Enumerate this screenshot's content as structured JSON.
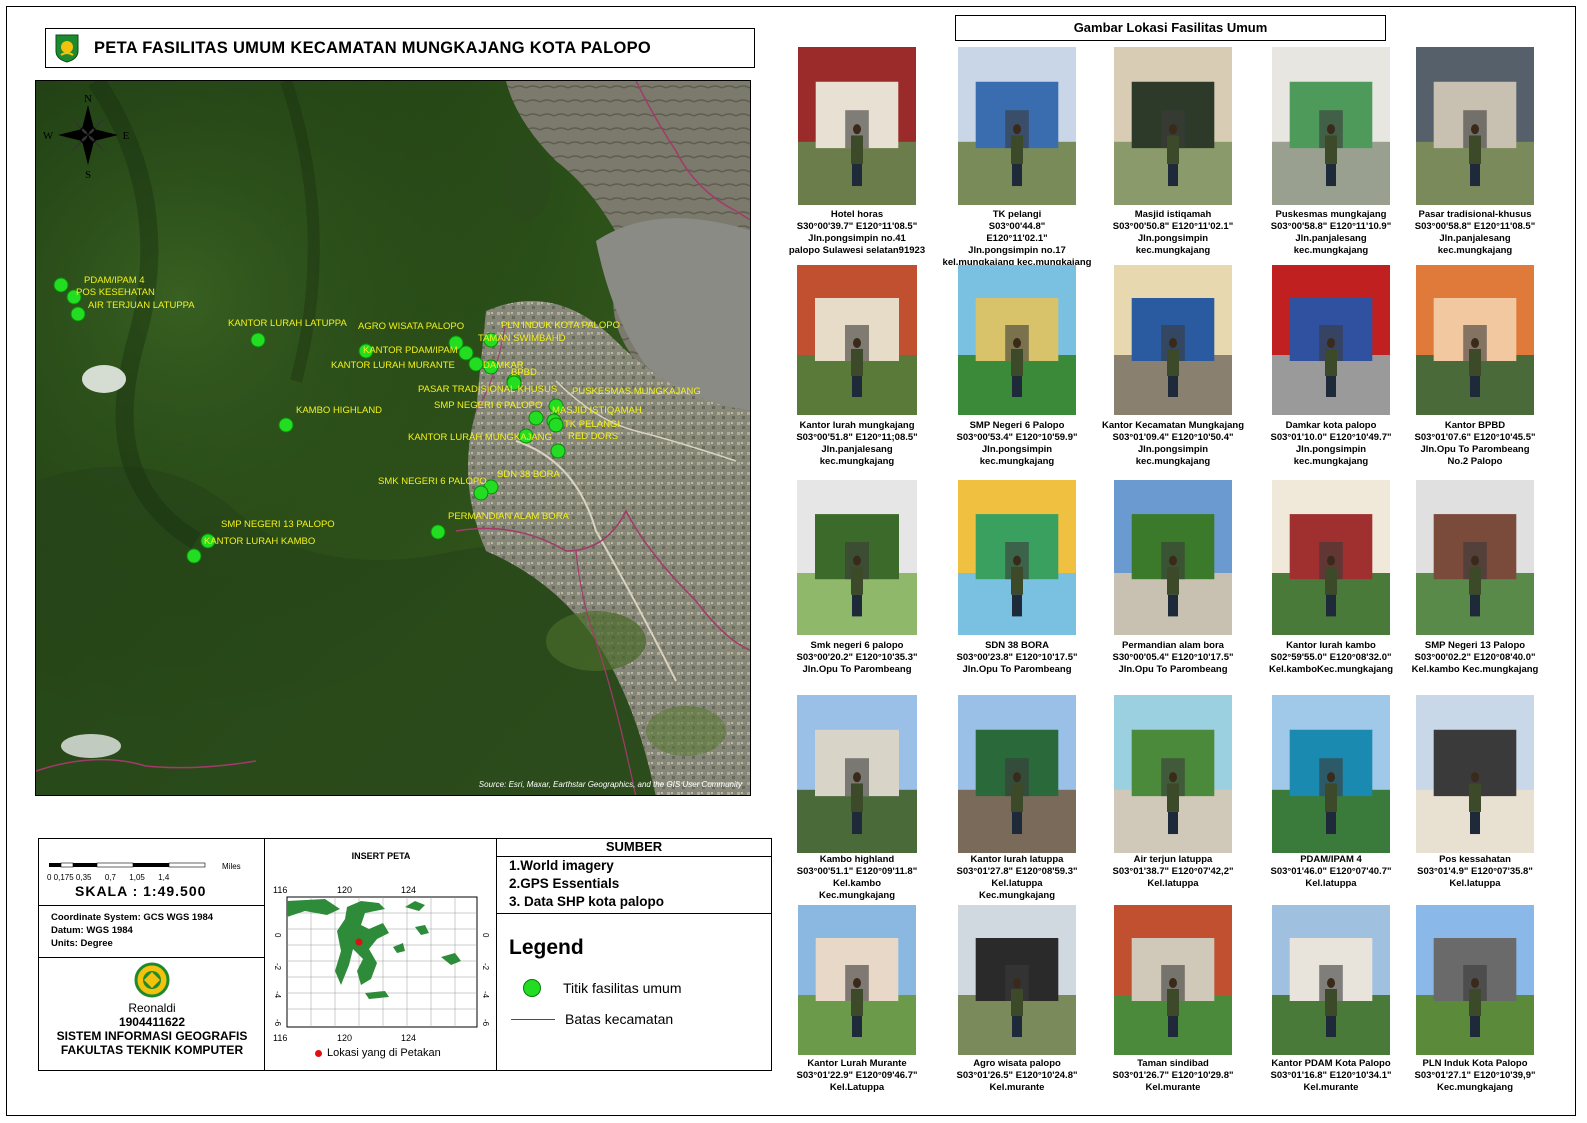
{
  "title": "PETA FASILITAS UMUM KECAMATAN MUNGKAJANG KOTA PALOPO",
  "map": {
    "compass": {
      "n": "N",
      "s": "S",
      "e": "E",
      "w": "W"
    },
    "attribution": "Source: Esri, Maxar, Earthstar Geographics, and the GIS User Community",
    "points": [
      {
        "label": "PDAM/IPAM 4"
      },
      {
        "label": "POS KESEHATAN"
      },
      {
        "label": "AIR TERJUAN LATUPPA"
      },
      {
        "label": "KANTOR LURAH LATUPPA"
      },
      {
        "label": "AGRO WISATA PALOPO"
      },
      {
        "label": "PLN INDUK KOTA PALOPO"
      },
      {
        "label": "TAMAN SWIMBAHD"
      },
      {
        "label": "KANTOR PDAM/IPAM"
      },
      {
        "label": "KANTOR LURAH MURANTE"
      },
      {
        "label": "DAMKAR"
      },
      {
        "label": "BPBD"
      },
      {
        "label": "PASAR TRADISIONAL KHUSUS"
      },
      {
        "label": "PUSKESMAS MUNGKAJANG"
      },
      {
        "label": "SMP NEGERI 6 PALOPO"
      },
      {
        "label": "MASJID ISTIQAMAH"
      },
      {
        "label": "TK PELANGI"
      },
      {
        "label": "KAMBO HIGHLAND"
      },
      {
        "label": "KANTOR LURAH MUNGKAJANG"
      },
      {
        "label": "RED DORS"
      },
      {
        "label": "SDN 38 BORA"
      },
      {
        "label": "SMK NEGERI 6 PALOPO"
      },
      {
        "label": "PERMANDIAN ALAM BORA"
      },
      {
        "label": "SMP NEGERI 13 PALOPO"
      },
      {
        "label": "KANTOR LURAH KAMBO"
      }
    ]
  },
  "scale": {
    "ticks": "0 0,175 0,35      0,7      1,05      1,4",
    "unit": "Miles",
    "label": "SKALA :   1:49.500"
  },
  "coordinate_system": {
    "line1": "Coordinate System: GCS WGS 1984",
    "line2": "Datum: WGS 1984",
    "line3": "Units: Degree"
  },
  "author": {
    "name": "Reonaldi",
    "nim": "1904411622",
    "program": "SISTEM INFORMASI GEOGRAFIS",
    "faculty": "FAKULTAS TEKNIK KOMPUTER"
  },
  "insert": {
    "title": "INSERT PETA",
    "x_ticks": [
      "116",
      "120",
      "124"
    ],
    "y_ticks": [
      "0",
      "-2",
      "-4",
      "-6"
    ],
    "legend": "Lokasi yang di Petakan"
  },
  "sumber": {
    "title": "SUMBER",
    "items": [
      "1.World imagery",
      "2.GPS Essentials",
      "3. Data SHP kota palopo"
    ]
  },
  "legend": {
    "title": "Legend",
    "items": [
      {
        "label": "Titik fasilitas umum",
        "color": "#22dd22"
      },
      {
        "label": "Batas kecamatan",
        "color": "#8b2a5a"
      }
    ]
  },
  "gallery": {
    "title": "Gambar Lokasi Fasilitas Umum",
    "photos": [
      {
        "lines": [
          "Hotel horas",
          "S30°00'39.7\" E120°11'08.5\"",
          "Jln.pongsimpin no.41",
          "palopo Sulawesi selatan91923"
        ]
      },
      {
        "lines": [
          "TK pelangi",
          "S03°00'44.8\"",
          "E120°11'02.1\"",
          "Jln.pongsimpin no.17",
          "kel.mungkajang kec.mungkajang"
        ]
      },
      {
        "lines": [
          "Masjid istiqamah",
          "S03°00'50.8\" E120°11'02.1\"",
          "Jln.pongsimpin",
          "kec.mungkajang"
        ]
      },
      {
        "lines": [
          "Puskesmas mungkajang",
          "S03°00'58.8\" E120°11'10.9\"",
          "Jln.panjalesang",
          "kec.mungkajang"
        ]
      },
      {
        "lines": [
          "Pasar tradisional-khusus",
          "S03°00'58.8\" E120°11'08.5\"",
          "Jln.panjalesang",
          "kec.mungkajang"
        ]
      },
      {
        "lines": [
          "Kantor lurah mungkajang",
          "S03°00'51.8\" E120°11;08.5\"",
          "Jln.panjalesang",
          "kec.mungkajang"
        ]
      },
      {
        "lines": [
          "SMP Negeri 6 Palopo",
          "S03°00'53.4\" E120°10'59.9\"",
          "Jln.pongsimpin",
          "kec.mungkajang"
        ]
      },
      {
        "lines": [
          "Kantor Kecamatan Mungkajang",
          "S03°01'09.4\" E120°10'50.4\"",
          "Jln.pongsimpin",
          "kec.mungkajang"
        ]
      },
      {
        "lines": [
          "Damkar kota palopo",
          "S03°01'10.0\" E120°10'49.7\"",
          "Jln.pongsimpin",
          "kec.mungkajang"
        ]
      },
      {
        "lines": [
          "Kantor BPBD",
          "S03°01'07.6\" E120°10'45.5\"",
          "Jln.Opu To Parombeang",
          "No.2 Palopo"
        ]
      },
      {
        "lines": [
          "Smk negeri 6 palopo",
          "S03°00'20.2\" E120°10'35.3\"",
          "Jln.Opu To Parombeang"
        ]
      },
      {
        "lines": [
          "SDN 38 BORA",
          "S03°00'23.8\" E120°10'17.5\"",
          "Jln.Opu To Parombeang"
        ]
      },
      {
        "lines": [
          "Permandian alam bora",
          "S30°00'05.4\" E120°10'17.5\"",
          "Jln.Opu To Parombeang"
        ]
      },
      {
        "lines": [
          "Kantor lurah kambo",
          "S02°59'55.0\" E120°08'32.0\"",
          "Kel.kamboKec.mungkajang"
        ]
      },
      {
        "lines": [
          "SMP Negeri 13 Palopo",
          "S03°00'02.2\" E120°08'40.0\"",
          "Kel.kambo Kec.mungkajang"
        ]
      },
      {
        "lines": [
          "Kambo highland",
          "S03°00'51.1\" E120°09'11.8\"",
          "Kel.kambo",
          "Kec.mungkajang"
        ]
      },
      {
        "lines": [
          "Kantor lurah latuppa",
          "S03°01'27.8\" E120°08'59.3\"",
          "Kel.latuppa",
          "Kec.mungkajang"
        ]
      },
      {
        "lines": [
          "Air terjun latuppa",
          "S03°01'38.7\" E120°07'42,2\"",
          "Kel.latuppa"
        ]
      },
      {
        "lines": [
          "PDAM/IPAM 4",
          "S03°01'46.0\" E120°07'40.7\"",
          "Kel.latuppa"
        ]
      },
      {
        "lines": [
          "Pos kessahatan",
          "S03°01'4.9\" E120°07'35.8\"",
          "Kel.latuppa"
        ]
      },
      {
        "lines": [
          "Kantor Lurah Murante",
          "S03°01'22.9\" E120°09'46.7\"",
          "Kel.Latuppa"
        ]
      },
      {
        "lines": [
          "Agro wisata palopo",
          "S03°01'26.5\" E120°10'24.8\"",
          "Kel.murante"
        ]
      },
      {
        "lines": [
          "Taman sindibad",
          "S03°01'26.7\" E120°10'29.8\"",
          "Kel.murante"
        ]
      },
      {
        "lines": [
          "Kantor PDAM Kota Palopo",
          "S03°01'16.8\" E120°10'34.1\"",
          "Kel.murante"
        ]
      },
      {
        "lines": [
          "PLN Induk Kota Palopo",
          "S03°01'27.1\" E120°10'39,9\"",
          "Kec.mungkajang"
        ]
      }
    ]
  }
}
